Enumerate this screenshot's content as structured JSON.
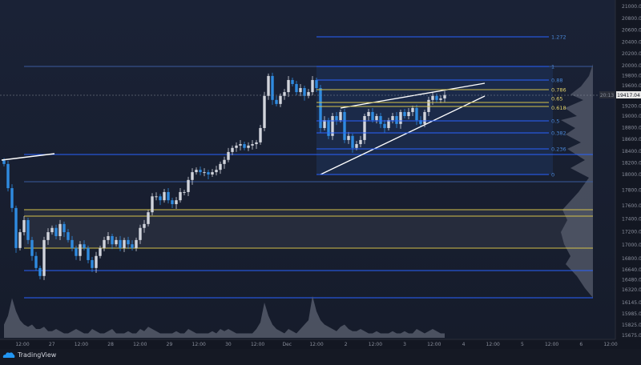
{
  "brand": "TradingView",
  "colors": {
    "up": "#d1d4dc",
    "down": "#2f8be0",
    "fib": "#2962ff",
    "fib_gold": "#d4c14a",
    "trendline": "#ffffff",
    "bg": "#131722"
  },
  "chart_data": {
    "type": "candlestick",
    "price_axis_ticks": [
      "21000.00",
      "20800.00",
      "20600.00",
      "20400.00",
      "20200.00",
      "20000.00",
      "19800.00",
      "19600.00",
      "19200.00",
      "19000.00",
      "18800.00",
      "18600.00",
      "18400.00",
      "18200.00",
      "18000.00",
      "17800.00",
      "17600.00",
      "17400.00",
      "17200.00",
      "17000.00",
      "16800.00",
      "16640.00",
      "16480.00",
      "16320.00",
      "16145.00",
      "15985.00",
      "15825.00",
      "15675.00"
    ],
    "last_price": "19417.04",
    "countdown": "20:13",
    "time_axis_ticks": [
      "12:00",
      "27",
      "12:00",
      "28",
      "12:00",
      "29",
      "12:00",
      "30",
      "12:00",
      "Dec",
      "12:00",
      "2",
      "12:00",
      "3",
      "12:00",
      "4",
      "12:00",
      "5",
      "12:00",
      "6",
      "12:00"
    ],
    "closes": [
      18180,
      17825,
      17565,
      16955,
      17195,
      17380,
      17075,
      16840,
      16665,
      16540,
      17075,
      17195,
      17260,
      17135,
      17320,
      17195,
      17075,
      16955,
      16840,
      17010,
      16955,
      16780,
      16665,
      16840,
      16955,
      17075,
      17135,
      17010,
      17075,
      16955,
      17075,
      17010,
      16955,
      17075,
      17260,
      17320,
      17500,
      17720,
      17720,
      17670,
      17775,
      17670,
      17620,
      17670,
      17775,
      17775,
      17930,
      18040,
      18080,
      18040,
      18040,
      18000,
      18040,
      18080,
      18180,
      18250,
      18385,
      18455,
      18495,
      18520,
      18455,
      18495,
      18520,
      18550,
      18795,
      19400,
      19795,
      19320,
      19240,
      19400,
      19475,
      19715,
      19635,
      19475,
      19555,
      19400,
      19475,
      19715,
      19555,
      18795,
      18930,
      18660,
      19000,
      18930,
      19080,
      18590,
      18660,
      18455,
      18520,
      18590,
      19000,
      19080,
      18930,
      19000,
      18865,
      18795,
      18930,
      19000,
      18865,
      19080,
      19000,
      19080,
      19160,
      18930,
      18865,
      19080,
      19320,
      19400,
      19320,
      19350,
      19417.04
    ],
    "volume_relative": [
      0.3,
      0.5,
      0.9,
      0.6,
      0.4,
      0.3,
      0.25,
      0.3,
      0.2,
      0.2,
      0.25,
      0.15,
      0.15,
      0.2,
      0.15,
      0.1,
      0.1,
      0.15,
      0.2,
      0.15,
      0.1,
      0.1,
      0.2,
      0.15,
      0.1,
      0.1,
      0.15,
      0.2,
      0.1,
      0.1,
      0.1,
      0.15,
      0.1,
      0.1,
      0.2,
      0.15,
      0.25,
      0.2,
      0.15,
      0.1,
      0.1,
      0.1,
      0.1,
      0.15,
      0.1,
      0.1,
      0.2,
      0.15,
      0.1,
      0.1,
      0.1,
      0.1,
      0.15,
      0.1,
      0.2,
      0.15,
      0.2,
      0.15,
      0.1,
      0.1,
      0.1,
      0.1,
      0.1,
      0.2,
      0.35,
      0.8,
      0.5,
      0.3,
      0.2,
      0.15,
      0.1,
      0.2,
      0.15,
      0.1,
      0.2,
      0.3,
      0.4,
      0.95,
      0.6,
      0.4,
      0.3,
      0.25,
      0.2,
      0.15,
      0.25,
      0.3,
      0.2,
      0.15,
      0.15,
      0.2,
      0.15,
      0.1,
      0.1,
      0.15,
      0.1,
      0.1,
      0.1,
      0.15,
      0.1,
      0.1,
      0.15,
      0.1,
      0.1,
      0.2,
      0.15,
      0.1,
      0.15,
      0.2,
      0.15,
      0.1,
      0.1
    ],
    "fib_levels": [
      {
        "label": "1.272",
        "gold": false
      },
      {
        "label": "1",
        "gold": false
      },
      {
        "label": "0.88",
        "gold": false
      },
      {
        "label": "0.786",
        "gold": true
      },
      {
        "label": "0.65",
        "gold": true
      },
      {
        "label": "0.618",
        "gold": true
      },
      {
        "label": "0.5",
        "gold": false
      },
      {
        "label": "0.382",
        "gold": false
      },
      {
        "label": "0.236",
        "gold": false
      },
      {
        "label": "0",
        "gold": false
      }
    ],
    "grid": false
  }
}
